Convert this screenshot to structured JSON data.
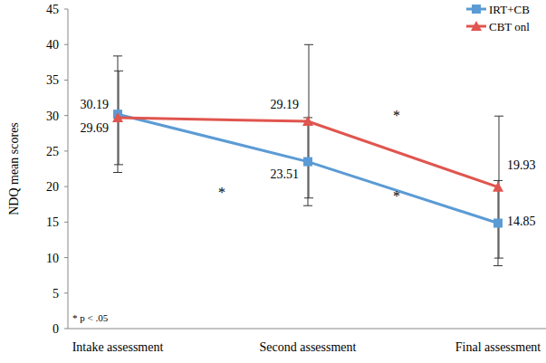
{
  "chart_data": {
    "type": "line",
    "y_label": "NDQ mean scores",
    "categories": [
      "Intake assessment",
      "Second assessment",
      "Final assessment"
    ],
    "series": [
      {
        "name": "IRT+CB",
        "color": "#5b9bd5",
        "marker": "square",
        "values": [
          30.19,
          23.51,
          14.85
        ],
        "errors": [
          8.2,
          6.2,
          6.0
        ]
      },
      {
        "name": "CBT onl",
        "color": "#e0554e",
        "marker": "triangle",
        "values": [
          29.69,
          29.19,
          19.93
        ],
        "errors": [
          6.6,
          10.8,
          10.0
        ]
      }
    ],
    "ylim": [
      0,
      45
    ],
    "yticks": [
      0,
      5,
      10,
      15,
      20,
      25,
      30,
      35,
      40,
      45
    ],
    "data_labels": true,
    "legend": "top-right",
    "annotations": [
      "*",
      "*",
      "*"
    ],
    "footnote": "* p < .05"
  }
}
